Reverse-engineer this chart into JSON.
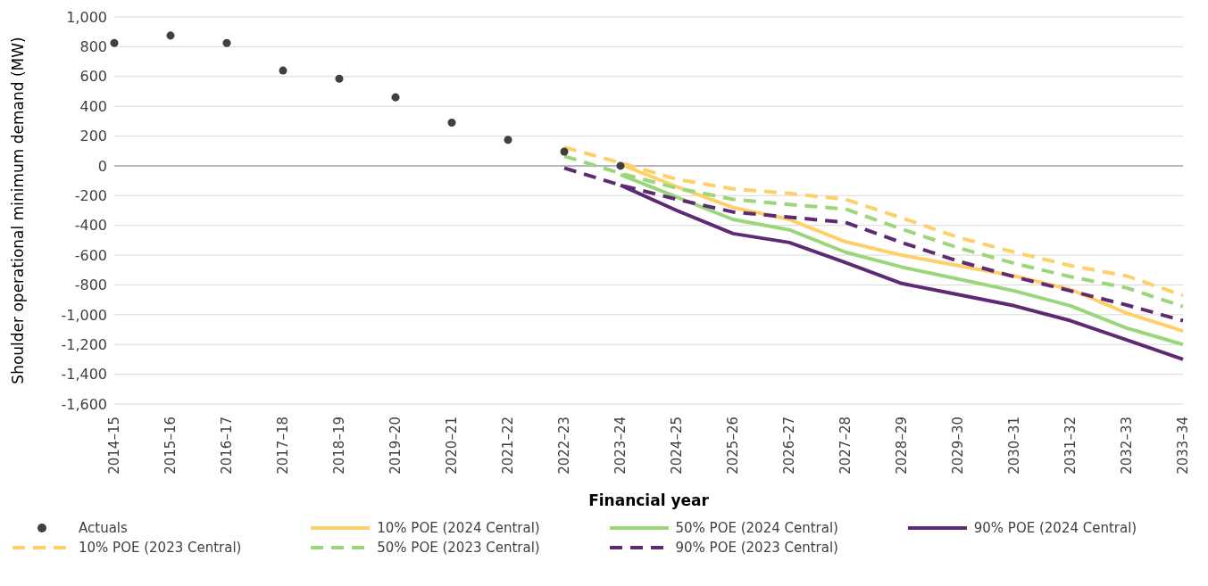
{
  "chart_data": {
    "type": "line",
    "xlabel": "Financial year",
    "ylabel": "Shoulder operational minimum demand (MW)",
    "categories": [
      "2014–15",
      "2015–16",
      "2016–17",
      "2017–18",
      "2018–19",
      "2019–20",
      "2020–21",
      "2021–22",
      "2022–23",
      "2023–24",
      "2024–25",
      "2025–26",
      "2026–27",
      "2027–28",
      "2028–29",
      "2029–30",
      "2030–31",
      "2031–32",
      "2032–33",
      "2033–34"
    ],
    "series": [
      {
        "name": "Actuals",
        "type": "scatter",
        "marker": "circle",
        "color": "#404040",
        "values": [
          825,
          875,
          825,
          640,
          585,
          460,
          290,
          175,
          95,
          0,
          null,
          null,
          null,
          null,
          null,
          null,
          null,
          null,
          null,
          null
        ]
      },
      {
        "name": "10% POE (2024 Central)",
        "line_style": "solid",
        "color": "#ffd06a",
        "values": [
          null,
          null,
          null,
          null,
          null,
          null,
          null,
          null,
          null,
          10,
          -140,
          -280,
          -360,
          -510,
          -600,
          -670,
          -740,
          -830,
          -990,
          -1110
        ]
      },
      {
        "name": "50% POE (2024 Central)",
        "line_style": "solid",
        "color": "#9cd67a",
        "values": [
          null,
          null,
          null,
          null,
          null,
          null,
          null,
          null,
          null,
          -60,
          -210,
          -360,
          -430,
          -580,
          -680,
          -760,
          -840,
          -940,
          -1090,
          -1200
        ]
      },
      {
        "name": "90% POE (2024 Central)",
        "line_style": "solid",
        "color": "#5e2a73",
        "values": [
          null,
          null,
          null,
          null,
          null,
          null,
          null,
          null,
          null,
          -130,
          -300,
          -455,
          -515,
          -650,
          -790,
          -865,
          -940,
          -1040,
          -1170,
          -1300
        ]
      },
      {
        "name": "10% POE (2023 Central)",
        "line_style": "dashed",
        "color": "#ffd06a",
        "values": [
          null,
          null,
          null,
          null,
          null,
          null,
          null,
          null,
          125,
          20,
          -90,
          -155,
          -185,
          -225,
          -350,
          -480,
          -580,
          -670,
          -740,
          -870
        ]
      },
      {
        "name": "50% POE (2023 Central)",
        "line_style": "dashed",
        "color": "#9cd67a",
        "values": [
          null,
          null,
          null,
          null,
          null,
          null,
          null,
          null,
          65,
          -50,
          -150,
          -225,
          -260,
          -290,
          -425,
          -550,
          -655,
          -745,
          -820,
          -945
        ]
      },
      {
        "name": "90% POE (2023 Central)",
        "line_style": "dashed",
        "color": "#5e2a73",
        "values": [
          null,
          null,
          null,
          null,
          null,
          null,
          null,
          null,
          -15,
          -130,
          -225,
          -310,
          -345,
          -380,
          -515,
          -640,
          -745,
          -840,
          -935,
          -1040
        ]
      }
    ],
    "ylim": [
      -1600,
      1000
    ],
    "yticks": [
      {
        "value": 1000,
        "label": "1,000"
      },
      800,
      600,
      400,
      200,
      0,
      -200,
      -400,
      -600,
      -800,
      {
        "value": -1000,
        "label": "-1,000"
      },
      {
        "value": -1200,
        "label": "-1,200"
      },
      {
        "value": -1400,
        "label": "-1,400"
      },
      {
        "value": -1600,
        "label": "-1,600"
      }
    ],
    "ref_lines": [
      {
        "axis": "y",
        "value": 0,
        "color": "#a6a6a6"
      }
    ],
    "grid": "y",
    "legend": "bottom"
  }
}
